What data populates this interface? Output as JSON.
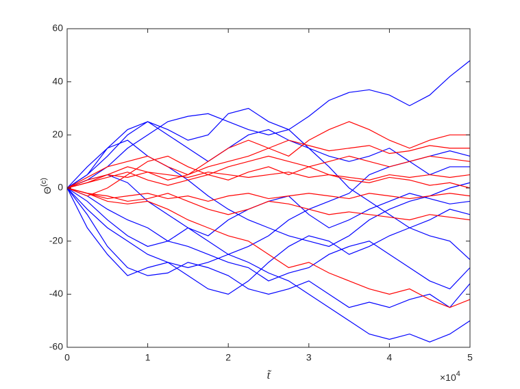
{
  "chart_data": {
    "type": "line",
    "x_label": "t̃",
    "y_label": {
      "base": "Θ",
      "superscript": "(c)"
    },
    "x_exponent": {
      "base": "×10",
      "superscript": "4"
    },
    "x": [
      0,
      0.25,
      0.5,
      0.75,
      1,
      1.25,
      1.5,
      1.75,
      2,
      2.25,
      2.5,
      2.75,
      3,
      3.25,
      3.5,
      3.75,
      4,
      4.25,
      4.5,
      4.75,
      5
    ],
    "xlim": [
      0,
      5
    ],
    "xticks": [
      0,
      1,
      2,
      3,
      4,
      5
    ],
    "ylim": [
      -60,
      60
    ],
    "yticks": [
      -60,
      -40,
      -20,
      0,
      20,
      40,
      60
    ],
    "series": [
      {
        "color": "#0000ff",
        "values": [
          0,
          3,
          8,
          15,
          20,
          25,
          27,
          28,
          25,
          22,
          20,
          22,
          27,
          33,
          36,
          37,
          35,
          31,
          35,
          42,
          48
        ]
      },
      {
        "color": "#0000ff",
        "values": [
          0,
          -8,
          -15,
          -20,
          -25,
          -28,
          -30,
          -28,
          -25,
          -28,
          -32,
          -35,
          -40,
          -45,
          -50,
          -55,
          -57,
          -55,
          -58,
          -55,
          -50
        ]
      },
      {
        "color": "#0000ff",
        "values": [
          0,
          -10,
          -22,
          -30,
          -33,
          -32,
          -28,
          -30,
          -33,
          -38,
          -40,
          -38,
          -35,
          -40,
          -45,
          -43,
          -45,
          -42,
          -40,
          -45,
          -36
        ]
      },
      {
        "color": "#0000ff",
        "values": [
          0,
          5,
          12,
          20,
          25,
          22,
          18,
          20,
          28,
          30,
          25,
          22,
          15,
          8,
          0,
          -5,
          -10,
          -15,
          -18,
          -20,
          -27
        ]
      },
      {
        "color": "#0000ff",
        "values": [
          0,
          -5,
          -12,
          -18,
          -22,
          -20,
          -15,
          -20,
          -25,
          -22,
          -18,
          -12,
          -8,
          -5,
          -2,
          5,
          8,
          10,
          5,
          8,
          8
        ]
      },
      {
        "color": "#0000ff",
        "values": [
          0,
          3,
          5,
          2,
          -5,
          -10,
          -15,
          -18,
          -12,
          -8,
          -5,
          -3,
          -10,
          -15,
          -12,
          -8,
          -5,
          -2,
          -4,
          -6,
          -5
        ]
      },
      {
        "color": "#0000ff",
        "values": [
          0,
          8,
          15,
          18,
          12,
          8,
          3,
          -3,
          -8,
          -12,
          -15,
          -18,
          -20,
          -22,
          -18,
          -12,
          -8,
          -5,
          -3,
          0,
          2
        ]
      },
      {
        "color": "#0000ff",
        "values": [
          0,
          -15,
          -25,
          -33,
          -30,
          -28,
          -33,
          -38,
          -40,
          -35,
          -28,
          -22,
          -18,
          -20,
          -25,
          -22,
          -18,
          -15,
          -12,
          -8,
          -10
        ]
      },
      {
        "color": "#0000ff",
        "values": [
          0,
          5,
          15,
          22,
          25,
          20,
          15,
          10,
          15,
          20,
          22,
          18,
          15,
          12,
          10,
          12,
          15,
          10,
          12,
          14,
          12
        ]
      },
      {
        "color": "#0000ff",
        "values": [
          0,
          -3,
          -8,
          -12,
          -15,
          -20,
          -22,
          -25,
          -28,
          -30,
          -35,
          -32,
          -30,
          -25,
          -22,
          -20,
          -25,
          -30,
          -35,
          -38,
          -30
        ]
      },
      {
        "color": "#ff0000",
        "values": [
          0,
          2,
          5,
          8,
          6,
          3,
          5,
          10,
          15,
          18,
          15,
          12,
          18,
          22,
          25,
          22,
          18,
          15,
          18,
          20,
          20
        ]
      },
      {
        "color": "#ff0000",
        "values": [
          0,
          -2,
          -3,
          -5,
          -4,
          -2,
          -5,
          -8,
          -10,
          -8,
          -5,
          -6,
          -8,
          -10,
          -9,
          -10,
          -11,
          -12,
          -10,
          -11,
          -12
        ]
      },
      {
        "color": "#ff0000",
        "values": [
          0,
          -2,
          -5,
          -6,
          -5,
          -8,
          -12,
          -15,
          -18,
          -20,
          -25,
          -30,
          -28,
          -32,
          -35,
          -38,
          -40,
          -38,
          -42,
          -45,
          -42
        ]
      },
      {
        "color": "#ff0000",
        "values": [
          0,
          3,
          5,
          4,
          6,
          5,
          4,
          6,
          5,
          4,
          5,
          6,
          4,
          5,
          4,
          3,
          5,
          4,
          5,
          4,
          5
        ]
      },
      {
        "color": "#ff0000",
        "values": [
          0,
          4,
          8,
          10,
          12,
          8,
          5,
          8,
          10,
          12,
          15,
          18,
          16,
          14,
          15,
          16,
          13,
          14,
          16,
          15,
          15
        ]
      },
      {
        "color": "#ff0000",
        "values": [
          0,
          -3,
          0,
          5,
          10,
          12,
          8,
          5,
          3,
          6,
          8,
          5,
          8,
          10,
          12,
          10,
          8,
          10,
          12,
          11,
          10
        ]
      },
      {
        "color": "#ff0000",
        "values": [
          0,
          -2,
          -4,
          -3,
          -2,
          -4,
          -3,
          -5,
          -3,
          -2,
          -4,
          -3,
          -2,
          -3,
          -4,
          -2,
          -3,
          -4,
          -3,
          -2,
          -3
        ]
      },
      {
        "color": "#ff0000",
        "values": [
          0,
          2,
          4,
          6,
          3,
          1,
          3,
          5,
          8,
          10,
          12,
          10,
          8,
          5,
          3,
          2,
          4,
          3,
          1,
          2,
          0
        ]
      }
    ]
  }
}
